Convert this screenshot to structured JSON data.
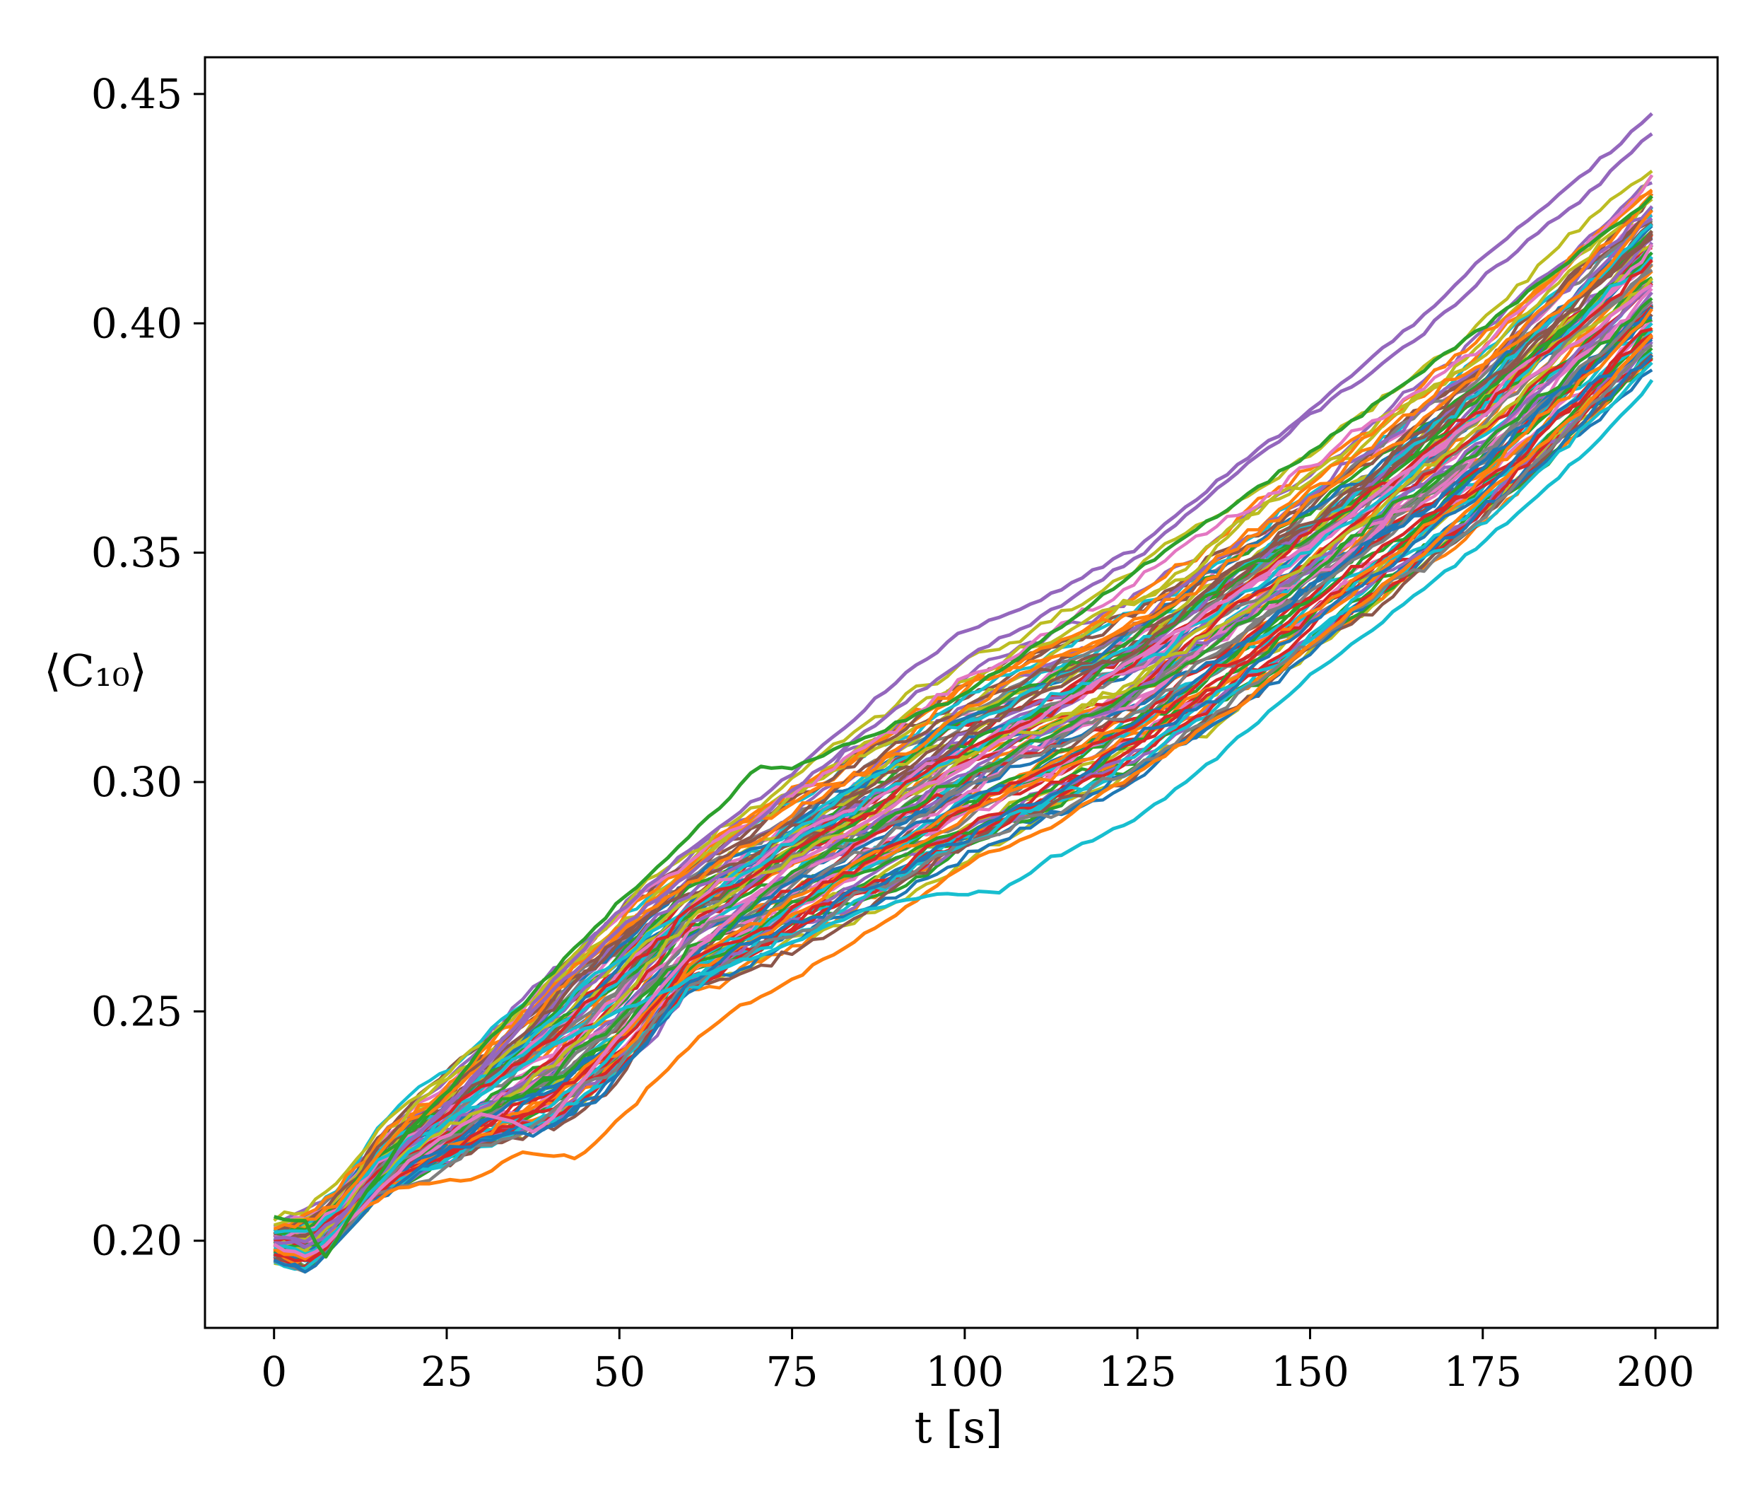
{
  "chart_data": {
    "type": "line",
    "title": "",
    "xlabel": "t [s]",
    "ylabel": "⟨C₁₀⟩",
    "xlim": [
      -10,
      209
    ],
    "ylim": [
      0.181,
      0.458
    ],
    "xticks": [
      0,
      25,
      50,
      75,
      100,
      125,
      150,
      175,
      200
    ],
    "xtick_labels": [
      "0",
      "25",
      "50",
      "75",
      "100",
      "125",
      "150",
      "175",
      "200"
    ],
    "yticks": [
      0.2,
      0.25,
      0.3,
      0.35,
      0.4,
      0.45
    ],
    "ytick_labels": [
      "0.20",
      "0.25",
      "0.30",
      "0.35",
      "0.40",
      "0.45"
    ],
    "grid": false,
    "legend": "none",
    "palette": [
      "#1f77b4",
      "#ff7f0e",
      "#2ca02c",
      "#d62728",
      "#9467bd",
      "#8c564b",
      "#e377c2",
      "#7f7f7f",
      "#bcbd22",
      "#17becf"
    ],
    "series_count": 100,
    "ensemble_summary": {
      "x": [
        0,
        5,
        10,
        15,
        20,
        25,
        30,
        40,
        50,
        60,
        75,
        100,
        125,
        150,
        175,
        200
      ],
      "upper_envelope": [
        0.206,
        0.209,
        0.215,
        0.226,
        0.234,
        0.24,
        0.248,
        0.266,
        0.28,
        0.292,
        0.307,
        0.334,
        0.352,
        0.38,
        0.408,
        0.446
      ],
      "mean": [
        0.2,
        0.199,
        0.205,
        0.214,
        0.223,
        0.229,
        0.236,
        0.25,
        0.264,
        0.275,
        0.288,
        0.308,
        0.329,
        0.353,
        0.38,
        0.41
      ],
      "lower_envelope": [
        0.195,
        0.193,
        0.201,
        0.209,
        0.212,
        0.214,
        0.217,
        0.218,
        0.229,
        0.249,
        0.261,
        0.28,
        0.297,
        0.323,
        0.352,
        0.388
      ]
    },
    "highlighted_series": [
      {
        "color": "#9467bd",
        "x": [
          0,
          5,
          7,
          10,
          15,
          20,
          25,
          30,
          40,
          50,
          60,
          75,
          90,
          100,
          110,
          125,
          137,
          150,
          165,
          175,
          190,
          200
        ],
        "values": [
          0.2,
          0.199,
          0.2,
          0.206,
          0.214,
          0.222,
          0.229,
          0.238,
          0.256,
          0.272,
          0.285,
          0.302,
          0.322,
          0.333,
          0.339,
          0.351,
          0.366,
          0.381,
          0.4,
          0.414,
          0.433,
          0.446
        ]
      },
      {
        "color": "#9467bd",
        "x": [
          0,
          5,
          10,
          15,
          20,
          25,
          30,
          40,
          50,
          60,
          75,
          90,
          100,
          110,
          125,
          140,
          150,
          165,
          175,
          190,
          200
        ],
        "values": [
          0.201,
          0.2,
          0.206,
          0.214,
          0.222,
          0.229,
          0.237,
          0.254,
          0.268,
          0.28,
          0.298,
          0.316,
          0.327,
          0.335,
          0.349,
          0.368,
          0.38,
          0.396,
          0.41,
          0.428,
          0.442
        ]
      },
      {
        "color": "#ff7f0e",
        "x": [
          0,
          5,
          8,
          12,
          17,
          20,
          25,
          30,
          35,
          40,
          44,
          48,
          52,
          55,
          60,
          65,
          75,
          90,
          100,
          112,
          125,
          140,
          150,
          165,
          175,
          190,
          200
        ],
        "values": [
          0.198,
          0.196,
          0.201,
          0.206,
          0.211,
          0.212,
          0.213,
          0.214,
          0.219,
          0.219,
          0.218,
          0.224,
          0.229,
          0.235,
          0.242,
          0.249,
          0.257,
          0.271,
          0.282,
          0.29,
          0.302,
          0.317,
          0.33,
          0.348,
          0.362,
          0.382,
          0.398
        ]
      },
      {
        "color": "#17becf",
        "x": [
          0,
          5,
          10,
          15,
          20,
          25,
          30,
          40,
          50,
          60,
          75,
          85,
          95,
          105,
          112,
          125,
          137,
          150,
          162,
          175,
          190,
          200
        ],
        "values": [
          0.199,
          0.197,
          0.204,
          0.212,
          0.22,
          0.226,
          0.232,
          0.242,
          0.25,
          0.257,
          0.265,
          0.272,
          0.275,
          0.276,
          0.283,
          0.292,
          0.306,
          0.323,
          0.337,
          0.352,
          0.372,
          0.388
        ]
      },
      {
        "color": "#e377c2",
        "x": [
          0,
          5,
          10,
          15,
          20,
          25,
          30,
          35,
          38,
          42,
          50,
          60,
          75,
          100,
          125,
          150,
          175,
          200
        ],
        "values": [
          0.199,
          0.196,
          0.203,
          0.211,
          0.218,
          0.223,
          0.228,
          0.226,
          0.223,
          0.23,
          0.245,
          0.262,
          0.282,
          0.304,
          0.327,
          0.352,
          0.38,
          0.409
        ]
      },
      {
        "color": "#2ca02c",
        "x": [
          0,
          5,
          7,
          10,
          15,
          20,
          25,
          30,
          40,
          50,
          60,
          70,
          75,
          100,
          125,
          150,
          175,
          200
        ],
        "values": [
          0.205,
          0.204,
          0.195,
          0.203,
          0.214,
          0.225,
          0.232,
          0.242,
          0.258,
          0.274,
          0.288,
          0.303,
          0.303,
          0.319,
          0.346,
          0.372,
          0.399,
          0.428
        ]
      }
    ]
  }
}
